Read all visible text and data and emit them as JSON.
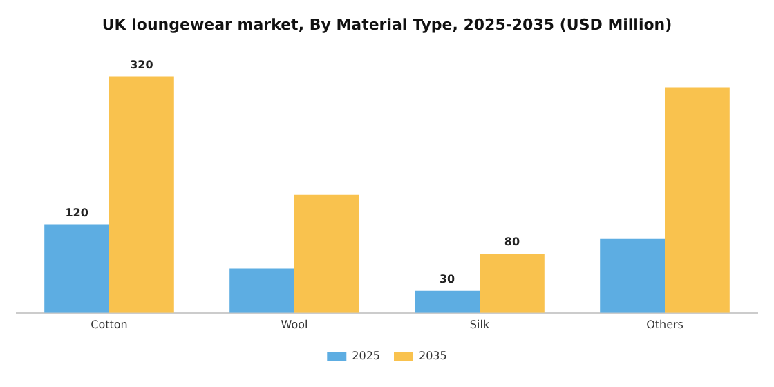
{
  "chart_data": {
    "type": "bar",
    "title": "UK loungewear market, By Material Type, 2025-2035 (USD Million)",
    "categories": [
      "Cotton",
      "Wool",
      "Silk",
      "Others"
    ],
    "series": [
      {
        "name": "2025",
        "color": "#5dade2",
        "values": [
          120,
          60,
          30,
          100
        ],
        "value_labels": [
          "120",
          null,
          "30",
          null
        ]
      },
      {
        "name": "2035",
        "color": "#f9c24e",
        "values": [
          320,
          160,
          80,
          305
        ],
        "value_labels": [
          "320",
          null,
          "80",
          null
        ]
      }
    ],
    "grid": false,
    "legend": "bottom"
  }
}
